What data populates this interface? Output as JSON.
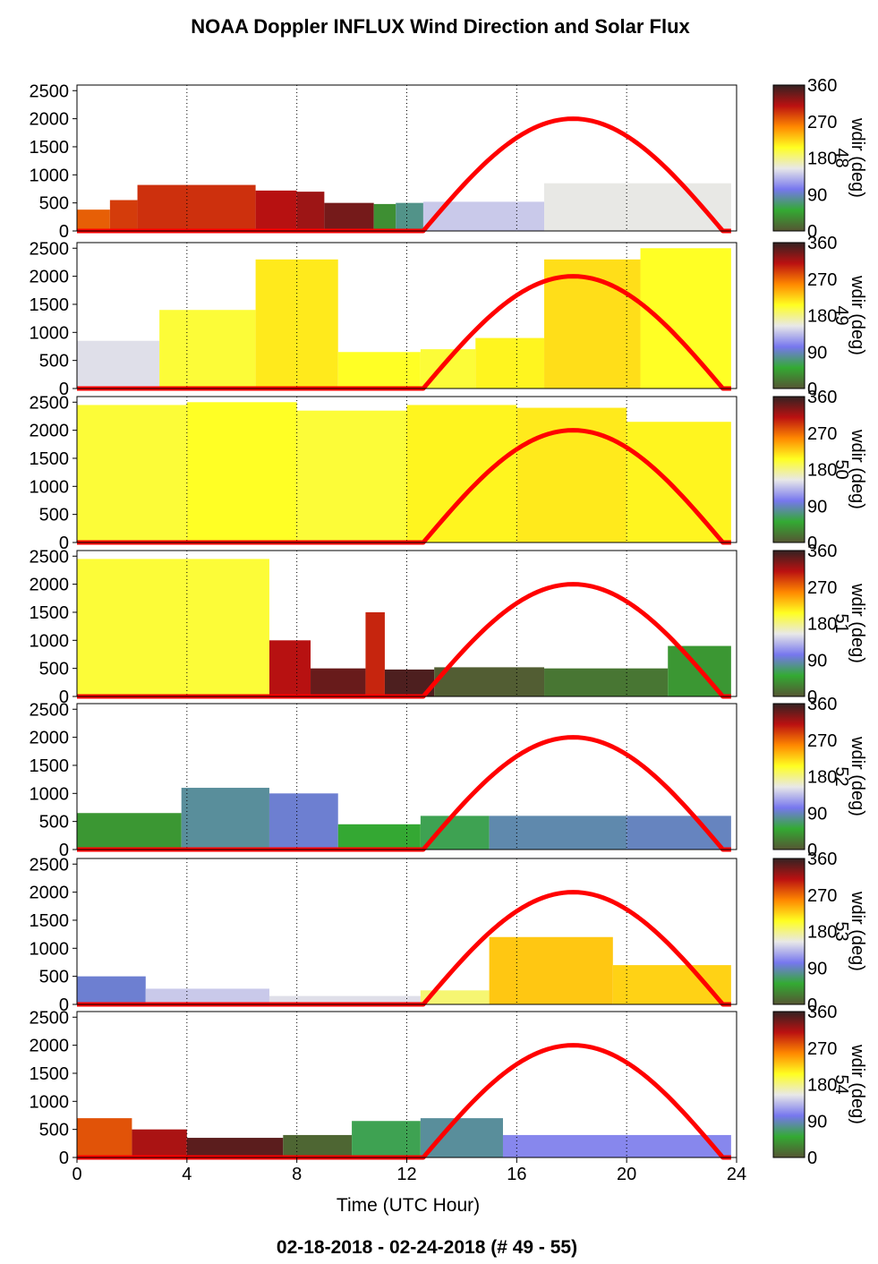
{
  "title": "NOAA Doppler INFLUX Wind Direction and Solar Flux",
  "footer": "02-18-2018 - 02-24-2018   (# 49 - 55)",
  "colorbar_label": "wdir (deg)",
  "colorbar_ticks": [
    "360",
    "270",
    "180",
    "90",
    "0"
  ],
  "colors": {
    "solar_flux": "#ff0000",
    "colormap": [
      "#555533",
      "#33aa33",
      "#7777ee",
      "#e8e8e8",
      "#ffff22",
      "#ff8800",
      "#bb1111",
      "#332222"
    ]
  },
  "chart_data": {
    "type": "heatmap",
    "xlabel": "Time (UTC Hour)",
    "xlim": [
      0,
      24
    ],
    "xticks": [
      "0",
      "4",
      "8",
      "12",
      "16",
      "20",
      "24"
    ],
    "ylim": [
      0,
      2600
    ],
    "yticks": [
      "0",
      "500",
      "1000",
      "1500",
      "2000",
      "2500"
    ],
    "color_range": [
      0,
      360
    ],
    "solar_flux": {
      "sunrise_hour": 12.6,
      "sunset_hour": 23.5,
      "peak_hour": 18.0,
      "peak": 2000
    },
    "panels": [
      {
        "day_label": "48",
        "segments": [
          {
            "x0": 0,
            "x1": 1.2,
            "top": 380,
            "dir": 275
          },
          {
            "x0": 1.2,
            "x1": 2.2,
            "top": 550,
            "dir": 290
          },
          {
            "x0": 2.2,
            "x1": 6.5,
            "top": 820,
            "dir": 295
          },
          {
            "x0": 6.5,
            "x1": 8.0,
            "top": 720,
            "dir": 310
          },
          {
            "x0": 8.0,
            "x1": 9.0,
            "top": 700,
            "dir": 320
          },
          {
            "x0": 9.0,
            "x1": 10.8,
            "top": 500,
            "dir": 335
          },
          {
            "x0": 10.8,
            "x1": 11.6,
            "top": 480,
            "dir": 35
          },
          {
            "x0": 11.6,
            "x1": 12.6,
            "top": 500,
            "dir": 75
          },
          {
            "x0": 12.6,
            "x1": 17.0,
            "top": 520,
            "dir": 140
          },
          {
            "x0": 17.0,
            "x1": 23.8,
            "top": 850,
            "dir": 155
          }
        ]
      },
      {
        "day_label": "49",
        "segments": [
          {
            "x0": 0,
            "x1": 3.0,
            "top": 850,
            "dir": 150
          },
          {
            "x0": 3.0,
            "x1": 6.5,
            "top": 1400,
            "dir": 200
          },
          {
            "x0": 6.5,
            "x1": 9.5,
            "top": 2300,
            "dir": 215
          },
          {
            "x0": 9.5,
            "x1": 12.5,
            "top": 650,
            "dir": 205
          },
          {
            "x0": 12.5,
            "x1": 14.5,
            "top": 700,
            "dir": 200
          },
          {
            "x0": 14.5,
            "x1": 17.0,
            "top": 900,
            "dir": 210
          },
          {
            "x0": 17.0,
            "x1": 20.5,
            "top": 2300,
            "dir": 220
          },
          {
            "x0": 20.5,
            "x1": 23.8,
            "top": 2500,
            "dir": 205
          }
        ]
      },
      {
        "day_label": "50",
        "segments": [
          {
            "x0": 0,
            "x1": 4.0,
            "top": 2450,
            "dir": 200
          },
          {
            "x0": 4.0,
            "x1": 8.0,
            "top": 2500,
            "dir": 205
          },
          {
            "x0": 8.0,
            "x1": 12.0,
            "top": 2350,
            "dir": 200
          },
          {
            "x0": 12.0,
            "x1": 16.0,
            "top": 2450,
            "dir": 210
          },
          {
            "x0": 16.0,
            "x1": 20.0,
            "top": 2400,
            "dir": 215
          },
          {
            "x0": 20.0,
            "x1": 23.8,
            "top": 2150,
            "dir": 210
          }
        ]
      },
      {
        "day_label": "51",
        "segments": [
          {
            "x0": 0,
            "x1": 7.0,
            "top": 2450,
            "dir": 200
          },
          {
            "x0": 7.0,
            "x1": 8.5,
            "top": 1000,
            "dir": 310
          },
          {
            "x0": 8.5,
            "x1": 10.5,
            "top": 500,
            "dir": 340
          },
          {
            "x0": 10.5,
            "x1": 11.2,
            "top": 1500,
            "dir": 300
          },
          {
            "x0": 11.2,
            "x1": 13.0,
            "top": 480,
            "dir": 350
          },
          {
            "x0": 13.0,
            "x1": 17.0,
            "top": 520,
            "dir": 5
          },
          {
            "x0": 17.0,
            "x1": 21.5,
            "top": 500,
            "dir": 20
          },
          {
            "x0": 21.5,
            "x1": 23.8,
            "top": 900,
            "dir": 40
          }
        ]
      },
      {
        "day_label": "52",
        "segments": [
          {
            "x0": 0,
            "x1": 3.8,
            "top": 650,
            "dir": 40
          },
          {
            "x0": 3.8,
            "x1": 7.0,
            "top": 1100,
            "dir": 80
          },
          {
            "x0": 7.0,
            "x1": 9.5,
            "top": 1000,
            "dir": 95
          },
          {
            "x0": 9.5,
            "x1": 12.5,
            "top": 450,
            "dir": 50
          },
          {
            "x0": 12.5,
            "x1": 15.0,
            "top": 600,
            "dir": 60
          },
          {
            "x0": 15.0,
            "x1": 20.0,
            "top": 600,
            "dir": 85
          },
          {
            "x0": 20.0,
            "x1": 23.8,
            "top": 600,
            "dir": 90
          }
        ]
      },
      {
        "day_label": "53",
        "segments": [
          {
            "x0": 0,
            "x1": 2.5,
            "top": 500,
            "dir": 95
          },
          {
            "x0": 2.5,
            "x1": 7.0,
            "top": 280,
            "dir": 140
          },
          {
            "x0": 7.0,
            "x1": 12.5,
            "top": 150,
            "dir": 150
          },
          {
            "x0": 12.5,
            "x1": 15.0,
            "top": 250,
            "dir": 185
          },
          {
            "x0": 15.0,
            "x1": 19.5,
            "top": 1200,
            "dir": 230
          },
          {
            "x0": 19.5,
            "x1": 23.8,
            "top": 700,
            "dir": 225
          }
        ]
      },
      {
        "day_label": "54",
        "segments": [
          {
            "x0": 0,
            "x1": 2.0,
            "top": 700,
            "dir": 280
          },
          {
            "x0": 2.0,
            "x1": 4.0,
            "top": 500,
            "dir": 315
          },
          {
            "x0": 4.0,
            "x1": 7.5,
            "top": 350,
            "dir": 345
          },
          {
            "x0": 7.5,
            "x1": 10.0,
            "top": 400,
            "dir": 10
          },
          {
            "x0": 10.0,
            "x1": 12.5,
            "top": 650,
            "dir": 60
          },
          {
            "x0": 12.5,
            "x1": 15.5,
            "top": 700,
            "dir": 80
          },
          {
            "x0": 15.5,
            "x1": 23.8,
            "top": 400,
            "dir": 110
          }
        ]
      }
    ]
  }
}
